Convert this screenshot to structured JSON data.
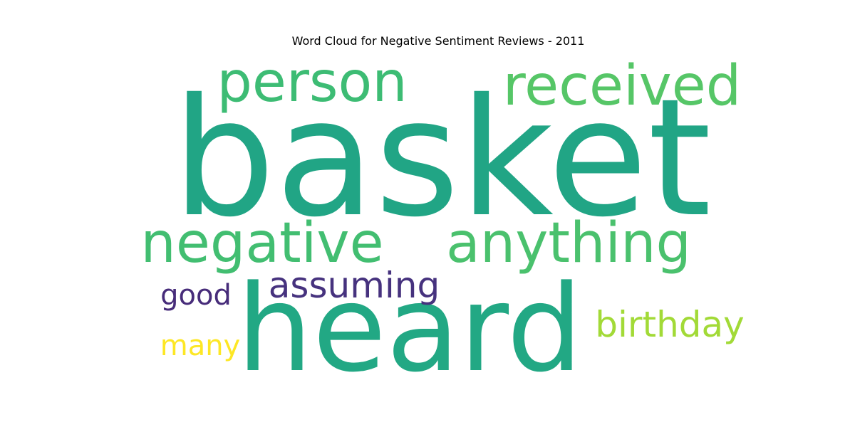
{
  "chart_data": {
    "type": "wordcloud",
    "title": "Word Cloud for Negative Sentiment Reviews - 2011",
    "colormap": "viridis",
    "words": [
      {
        "text": "basket",
        "weight": 1.0,
        "color": "#21a585"
      },
      {
        "text": "heard",
        "weight": 0.82,
        "color": "#22a884"
      },
      {
        "text": "person",
        "weight": 0.4,
        "color": "#3dbc74"
      },
      {
        "text": "received",
        "weight": 0.4,
        "color": "#56c667"
      },
      {
        "text": "negative",
        "weight": 0.4,
        "color": "#42be71"
      },
      {
        "text": "anything",
        "weight": 0.4,
        "color": "#4ac16d"
      },
      {
        "text": "assuming",
        "weight": 0.25,
        "color": "#46327e"
      },
      {
        "text": "birthday",
        "weight": 0.25,
        "color": "#a2da37"
      },
      {
        "text": "good",
        "weight": 0.2,
        "color": "#472c7a"
      },
      {
        "text": "many",
        "weight": 0.2,
        "color": "#fde725"
      }
    ]
  }
}
